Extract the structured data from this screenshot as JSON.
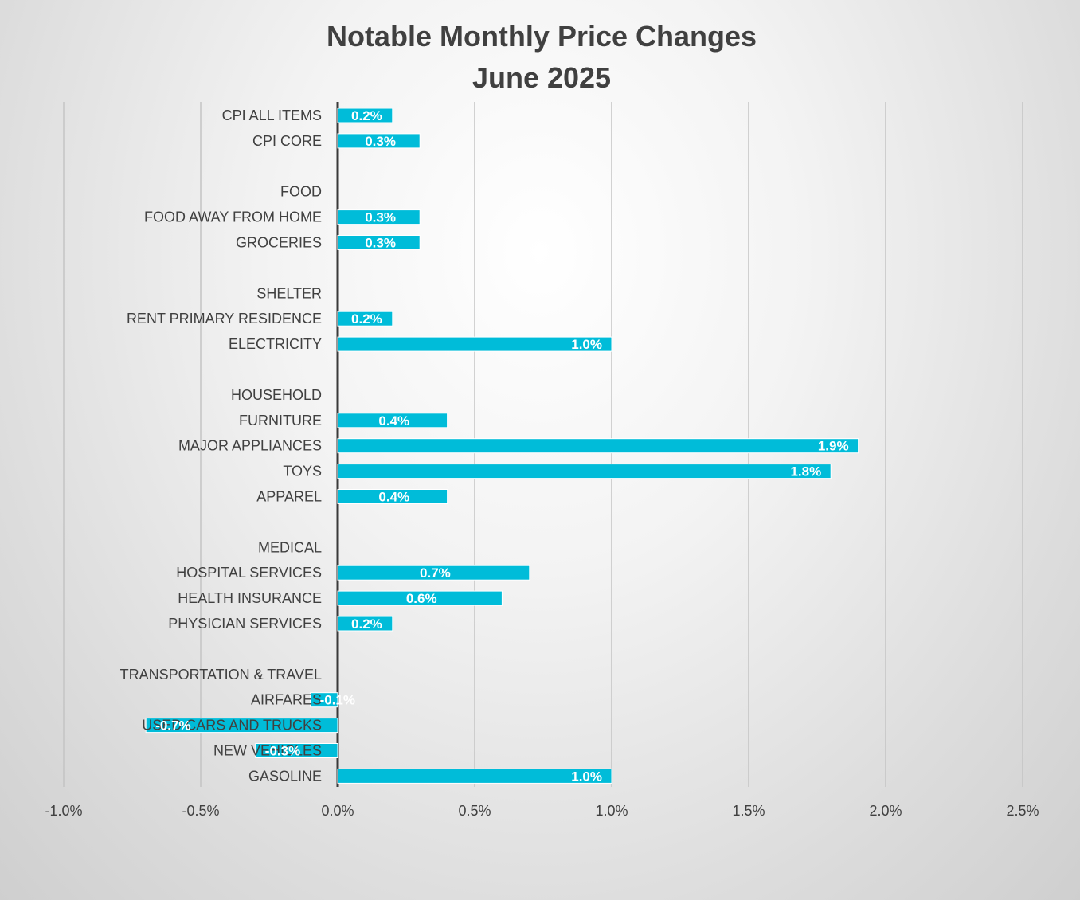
{
  "chart_data": {
    "type": "bar",
    "orientation": "horizontal",
    "title": "Notable Monthly Price Changes",
    "subtitle": "June 2025",
    "xlabel": "",
    "ylabel": "",
    "xlim": [
      -1.0,
      2.5
    ],
    "xticks": [
      -1.0,
      -0.5,
      0.0,
      0.5,
      1.0,
      1.5,
      2.0,
      2.5
    ],
    "tick_labels": [
      "-1.0%",
      "-0.5%",
      "0.0%",
      "0.5%",
      "1.0%",
      "1.5%",
      "2.0%",
      "2.5%"
    ],
    "grid": true,
    "bar_color": "#00bcd9",
    "categories": [
      "CPI ALL ITEMS",
      "CPI CORE",
      "",
      "FOOD",
      "FOOD AWAY FROM HOME",
      "GROCERIES",
      "",
      "SHELTER",
      "RENT PRIMARY RESIDENCE",
      "ELECTRICITY",
      "",
      "HOUSEHOLD",
      "FURNITURE",
      "MAJOR APPLIANCES",
      "TOYS",
      "APPAREL",
      "",
      "MEDICAL",
      "HOSPITAL SERVICES",
      "HEALTH INSURANCE",
      "PHYSICIAN SERVICES",
      "",
      "TRANSPORTATION & TRAVEL",
      "AIRFARES",
      "USED CARS AND TRUCKS",
      "NEW VEHICLES",
      "GASOLINE"
    ],
    "values": [
      0.2,
      0.3,
      null,
      null,
      0.3,
      0.3,
      null,
      null,
      0.2,
      1.0,
      null,
      null,
      0.4,
      1.9,
      1.8,
      0.4,
      null,
      null,
      0.7,
      0.6,
      0.2,
      null,
      null,
      -0.1,
      -0.7,
      -0.3,
      1.0
    ],
    "data_labels": [
      "0.2%",
      "0.3%",
      "",
      "",
      "0.3%",
      "0.3%",
      "",
      "",
      "0.2%",
      "1.0%",
      "",
      "",
      "0.4%",
      "1.9%",
      "1.8%",
      "0.4%",
      "",
      "",
      "0.7%",
      "0.6%",
      "0.2%",
      "",
      "",
      "-0.1%",
      "-0.7%",
      "-0.3%",
      "1.0%"
    ]
  }
}
